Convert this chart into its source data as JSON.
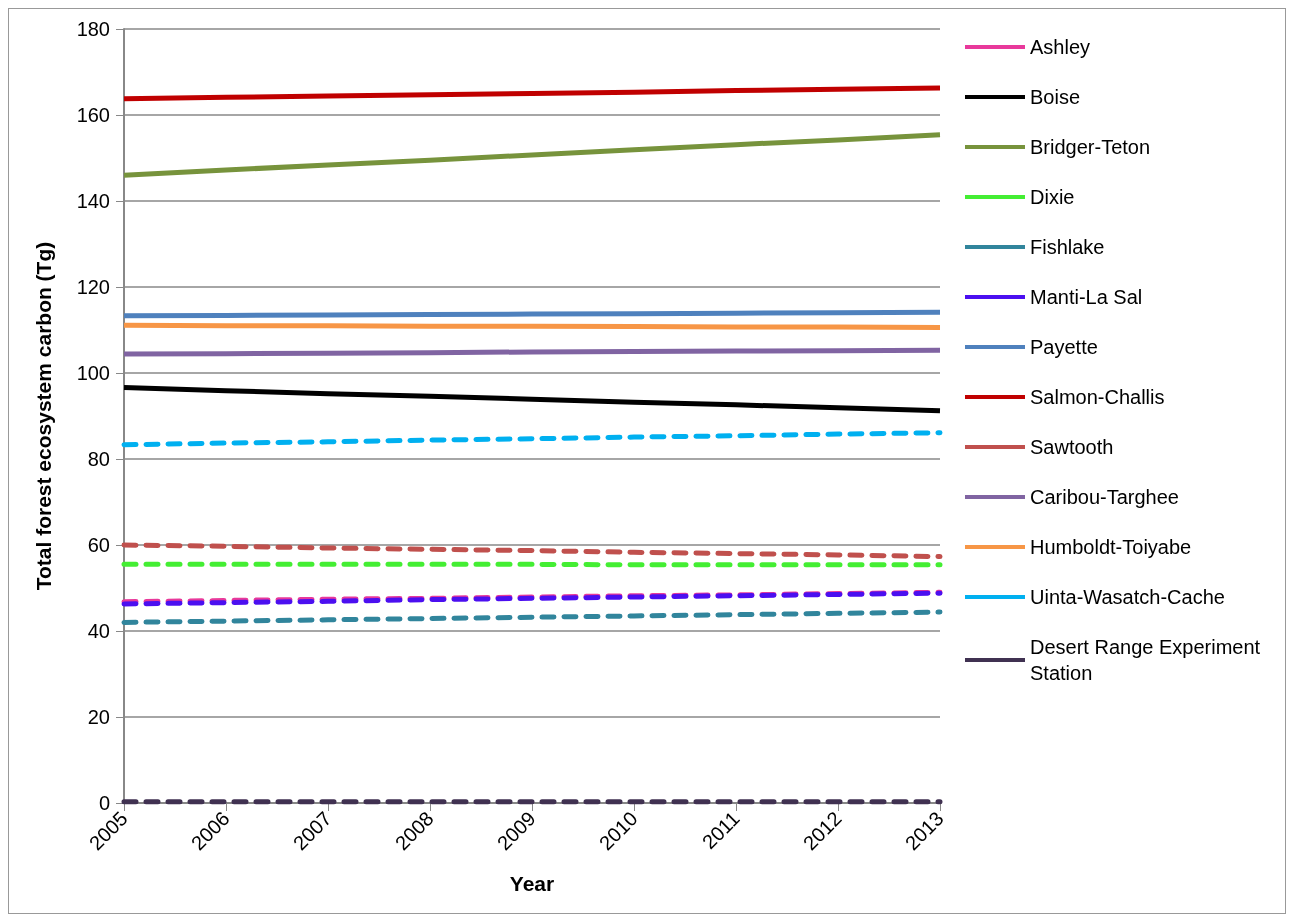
{
  "chart_data": {
    "type": "line",
    "xlabel": "Year",
    "ylabel": "Total forest ecosystem carbon (Tg)",
    "categories": [
      "2005",
      "2006",
      "2007",
      "2008",
      "2009",
      "2010",
      "2011",
      "2012",
      "2013"
    ],
    "ylim": [
      0,
      180
    ],
    "yticks": [
      0,
      20,
      40,
      60,
      80,
      100,
      120,
      140,
      160,
      180
    ],
    "grid": "y",
    "legend": "right",
    "marker": "none",
    "series": [
      {
        "name": "Ashley",
        "color": "#e8399b",
        "line_style": "dashed",
        "values": [
          46.8,
          47.1,
          47.4,
          47.6,
          47.9,
          48.2,
          48.4,
          48.7,
          49.0
        ]
      },
      {
        "name": "Boise",
        "color": "#000000",
        "line_style": "solid",
        "values": [
          96.6,
          95.9,
          95.2,
          94.6,
          93.9,
          93.2,
          92.6,
          91.9,
          91.2
        ]
      },
      {
        "name": "Bridger-Teton",
        "color": "#77933c",
        "line_style": "solid",
        "values": [
          146.0,
          147.2,
          148.4,
          149.5,
          150.7,
          151.9,
          153.1,
          154.2,
          155.4
        ]
      },
      {
        "name": "Dixie",
        "color": "#44ee33",
        "line_style": "dashed",
        "values": [
          55.5,
          55.5,
          55.5,
          55.5,
          55.5,
          55.4,
          55.4,
          55.4,
          55.4
        ]
      },
      {
        "name": "Fishlake",
        "color": "#31859c",
        "line_style": "dashed",
        "values": [
          42.0,
          42.3,
          42.6,
          42.9,
          43.2,
          43.5,
          43.8,
          44.1,
          44.4
        ]
      },
      {
        "name": "Manti-La Sal",
        "color": "#4b0ff0",
        "line_style": "dashed",
        "values": [
          46.3,
          46.6,
          46.9,
          47.3,
          47.6,
          47.9,
          48.2,
          48.5,
          48.8
        ]
      },
      {
        "name": "Payette",
        "color": "#4f81bd",
        "line_style": "solid",
        "values": [
          113.3,
          113.4,
          113.5,
          113.6,
          113.7,
          113.8,
          113.9,
          114.0,
          114.1
        ]
      },
      {
        "name": "Salmon-Challis",
        "color": "#c00000",
        "line_style": "solid",
        "values": [
          163.8,
          164.1,
          164.4,
          164.7,
          165.0,
          165.3,
          165.7,
          166.0,
          166.3
        ]
      },
      {
        "name": "Sawtooth",
        "color": "#c0504d",
        "line_style": "dashed",
        "values": [
          60.0,
          59.7,
          59.3,
          59.0,
          58.7,
          58.3,
          58.0,
          57.7,
          57.3
        ]
      },
      {
        "name": "Caribou-Targhee",
        "color": "#8064a2",
        "line_style": "solid",
        "values": [
          104.4,
          104.5,
          104.6,
          104.7,
          104.9,
          105.0,
          105.1,
          105.2,
          105.3
        ]
      },
      {
        "name": "Humboldt-Toiyabe",
        "color": "#f79646",
        "line_style": "solid",
        "values": [
          111.1,
          111.0,
          111.0,
          110.9,
          110.9,
          110.8,
          110.7,
          110.7,
          110.6
        ]
      },
      {
        "name": "Uinta-Wasatch-Cache",
        "color": "#00b0f0",
        "line_style": "dashed",
        "values": [
          83.3,
          83.7,
          84.0,
          84.4,
          84.7,
          85.1,
          85.4,
          85.8,
          86.1
        ]
      },
      {
        "name": "Desert Range Experiment Station",
        "color": "#403151",
        "line_style": "dashed",
        "values": [
          0.3,
          0.3,
          0.3,
          0.3,
          0.3,
          0.3,
          0.3,
          0.3,
          0.3
        ]
      }
    ]
  }
}
